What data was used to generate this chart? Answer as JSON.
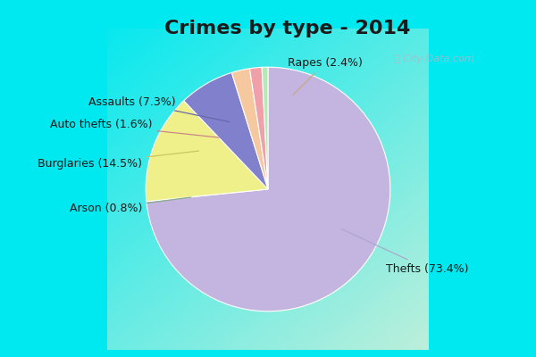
{
  "title": "Crimes by type - 2014",
  "labels": [
    "Thefts",
    "Burglaries",
    "Assaults",
    "Rapes",
    "Auto thefts",
    "Arson"
  ],
  "values": [
    73.4,
    14.5,
    7.3,
    2.4,
    1.6,
    0.8
  ],
  "colors": [
    "#c4b4e0",
    "#f0f08a",
    "#8080cc",
    "#f5c8a0",
    "#f0a0a8",
    "#b8e8b8"
  ],
  "border_color": "#00e0f0",
  "border_thickness": 18,
  "title_fontsize": 16,
  "label_fontsize": 9,
  "startangle": 90,
  "watermark": "City-Data.com"
}
